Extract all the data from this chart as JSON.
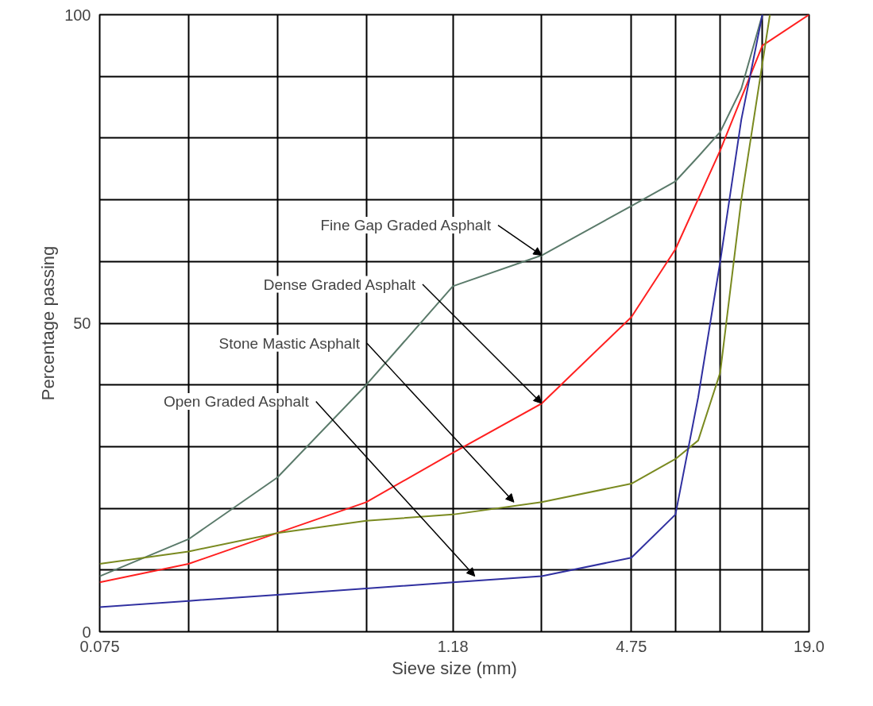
{
  "chart_data": {
    "type": "line",
    "xlabel": "Sieve size (mm)",
    "ylabel": "Percentage passing",
    "log": "x",
    "xlim": [
      0.075,
      19
    ],
    "ylim": [
      0,
      100
    ],
    "xticks": [
      0.075,
      {
        "value": 0.15,
        "label": null
      },
      {
        "value": 0.3,
        "label": null
      },
      {
        "value": 0.6,
        "label": null
      },
      1.18,
      {
        "value": 2.36,
        "label": null
      },
      4.75,
      {
        "value": 6.7,
        "label": null
      },
      {
        "value": 9.5,
        "label": null
      },
      {
        "value": 13.2,
        "label": null
      },
      {
        "value": 19,
        "label": "19.0"
      }
    ],
    "yticks": [
      0,
      {
        "value": 10,
        "label": null
      },
      {
        "value": 20,
        "label": null
      },
      {
        "value": 30,
        "label": null
      },
      {
        "value": 40,
        "label": null
      },
      50,
      {
        "value": 60,
        "label": null
      },
      {
        "value": 70,
        "label": null
      },
      {
        "value": 80,
        "label": null
      },
      {
        "value": 90,
        "label": null
      },
      100
    ],
    "grid": true,
    "marker": "none",
    "line_style": "solid",
    "series": [
      {
        "color": "#5a7a6a",
        "x": [
          0.075,
          0.15,
          0.3,
          0.6,
          1.18,
          2.36,
          4.75,
          6.7,
          8.0,
          9.5,
          11.2,
          13.2
        ],
        "values": [
          9,
          15,
          25,
          40,
          56,
          61,
          69,
          73,
          77,
          81,
          88,
          100
        ]
      },
      {
        "color": "#ff2020",
        "x": [
          0.075,
          0.15,
          0.3,
          0.6,
          1.18,
          2.36,
          4.75,
          6.7,
          9.5,
          13.2,
          19
        ],
        "values": [
          8,
          11,
          16,
          21,
          29,
          37,
          51,
          62,
          78,
          95,
          100
        ]
      },
      {
        "color": "#7a8a20",
        "x": [
          0.075,
          0.15,
          0.3,
          0.6,
          1.18,
          2.36,
          4.75,
          6.7,
          8.0,
          9.5,
          11.2,
          14.0
        ],
        "values": [
          11,
          13,
          16,
          18,
          19,
          21,
          24,
          28,
          31,
          42,
          70,
          100
        ]
      },
      {
        "color": "#3030a0",
        "x": [
          0.075,
          0.15,
          0.3,
          0.6,
          1.18,
          2.36,
          4.75,
          6.7,
          8.0,
          9.5,
          11.2,
          13.2
        ],
        "values": [
          4,
          5,
          6,
          7,
          8,
          9,
          12,
          19,
          38,
          60,
          83,
          100
        ]
      }
    ],
    "annotations": [
      {
        "text": "Fine Gap Graded Asphalt",
        "x": 2.36,
        "y": 61
      },
      {
        "text": "Dense Graded Asphalt",
        "x": 2.36,
        "y": 37
      },
      {
        "text": "Stone Mastic Asphalt",
        "x": 1.9,
        "y": 21
      },
      {
        "text": "Open Graded Asphalt",
        "x": 1.4,
        "y": 9
      }
    ]
  }
}
